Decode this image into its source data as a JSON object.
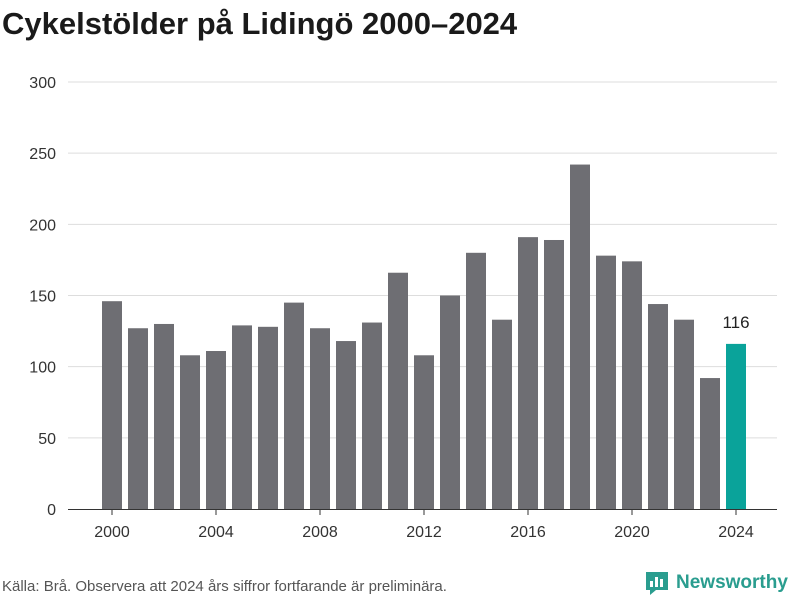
{
  "title": "Cykelstölder på Lidingö 2000–2024",
  "source": "Källa: Brå. Observera att 2024 års siffror fortfarande är preliminära.",
  "brand": "Newsworthy",
  "colors": {
    "bar": "#6e6e73",
    "highlight": "#0aa39a",
    "grid": "#dddddd",
    "brand": "#2a9d8f"
  },
  "chart_data": {
    "type": "bar",
    "x": [
      2000,
      2001,
      2002,
      2003,
      2004,
      2005,
      2006,
      2007,
      2008,
      2009,
      2010,
      2011,
      2012,
      2013,
      2014,
      2015,
      2016,
      2017,
      2018,
      2019,
      2020,
      2021,
      2022,
      2023,
      2024
    ],
    "values": [
      146,
      127,
      130,
      108,
      111,
      129,
      128,
      145,
      127,
      118,
      131,
      166,
      108,
      150,
      180,
      133,
      191,
      189,
      242,
      178,
      174,
      144,
      133,
      92,
      116
    ],
    "highlight": [
      2024
    ],
    "data_labels": [
      {
        "x": 2024,
        "text": "116"
      }
    ],
    "y_ticks": [
      0,
      50,
      100,
      150,
      200,
      250,
      300
    ],
    "x_ticks": [
      2000,
      2004,
      2008,
      2012,
      2016,
      2020,
      2024
    ],
    "ylim": [
      0,
      300
    ],
    "grid": true
  }
}
